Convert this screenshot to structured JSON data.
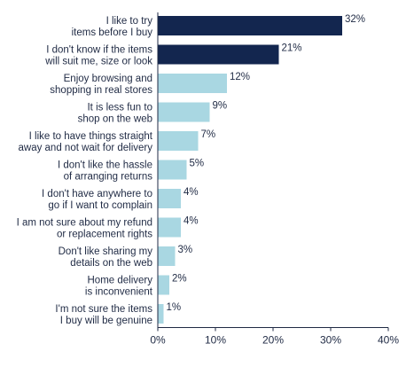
{
  "chart_data": {
    "type": "bar",
    "orientation": "horizontal",
    "title": "",
    "xlabel": "",
    "ylabel": "",
    "categories": [
      [
        "I like to try",
        "items before I buy"
      ],
      [
        "I don't know if the items",
        "will suit me, size or look"
      ],
      [
        "Enjoy browsing and",
        "shopping in real stores"
      ],
      [
        "It is less fun to",
        "shop on the web"
      ],
      [
        "I like to have things straight",
        "away and not wait for delivery"
      ],
      [
        "I don't like the hassle",
        "of arranging returns"
      ],
      [
        "I don't have anywhere to",
        "go if I want to complain"
      ],
      [
        "I am not sure about my refund",
        "or replacement rights"
      ],
      [
        "Don't like sharing my",
        "details on the web"
      ],
      [
        "Home delivery",
        "is inconvenient"
      ],
      [
        "I'm not sure the items",
        "I buy will be genuine"
      ]
    ],
    "values": [
      32,
      21,
      12,
      9,
      7,
      5,
      4,
      4,
      3,
      2,
      1
    ],
    "value_labels": [
      "32%",
      "21%",
      "12%",
      "9%",
      "7%",
      "5%",
      "4%",
      "4%",
      "3%",
      "2%",
      "1%"
    ],
    "bar_colors": [
      "#13264f",
      "#13264f",
      "#a9d7e2",
      "#a9d7e2",
      "#a9d7e2",
      "#a9d7e2",
      "#a9d7e2",
      "#a9d7e2",
      "#a9d7e2",
      "#a9d7e2",
      "#a9d7e2"
    ],
    "xlim": [
      0,
      40
    ],
    "xticks": [
      0,
      10,
      20,
      30,
      40
    ],
    "xtick_labels": [
      "0%",
      "10%",
      "20%",
      "30%",
      "40%"
    ],
    "grid": false
  },
  "colors": {
    "axis": "#1f2a44",
    "text": "#1f2a44"
  }
}
